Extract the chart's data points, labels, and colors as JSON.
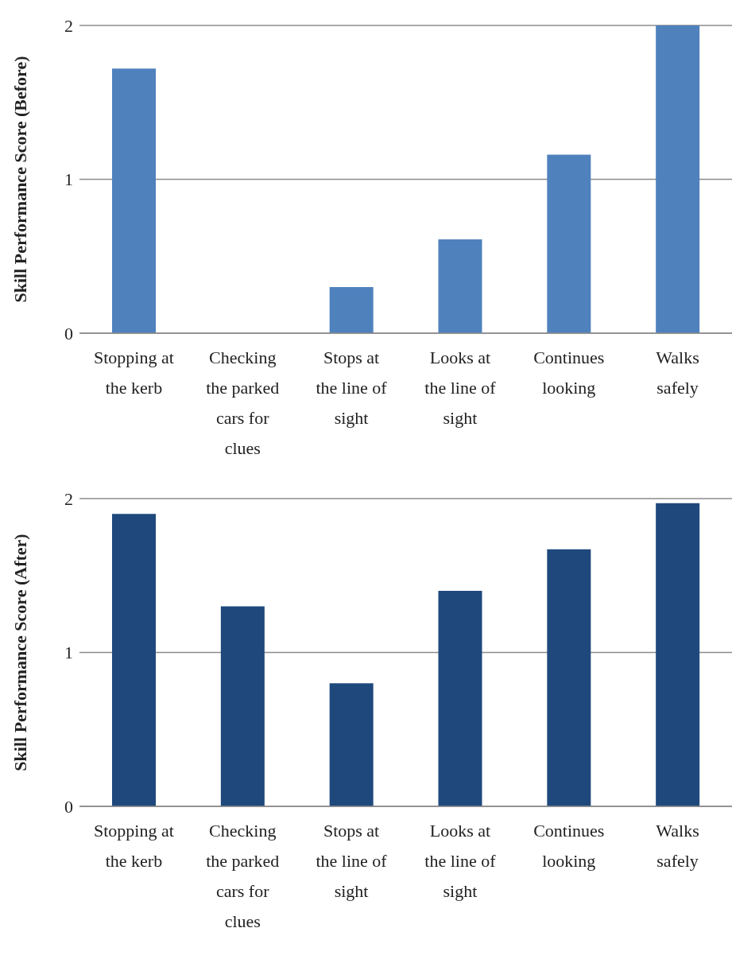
{
  "chart_data": [
    {
      "type": "bar",
      "ylabel": "Skill Performance Score (Before)",
      "categories": [
        "Stopping at the kerb",
        "Checking the parked cars for clues",
        "Stops at the line of sight",
        "Looks at the line of sight",
        "Continues looking",
        "Walks safely"
      ],
      "values": [
        1.72,
        0,
        0.3,
        0.61,
        1.16,
        2.0
      ],
      "color": "#4f81bd",
      "ylim": [
        0,
        2
      ],
      "yticks": [
        0,
        1,
        2
      ],
      "grid": "y"
    },
    {
      "type": "bar",
      "ylabel": "Skill Performance Score (After)",
      "categories": [
        "Stopping at the kerb",
        "Checking the parked cars for clues",
        "Stops at the line of sight",
        "Looks at the line of sight",
        "Continues looking",
        "Walks safely"
      ],
      "values": [
        1.9,
        1.3,
        0.8,
        1.4,
        1.67,
        1.97
      ],
      "color": "#1f497d",
      "ylim": [
        0,
        2
      ],
      "yticks": [
        0,
        1,
        2
      ],
      "grid": "y"
    }
  ]
}
